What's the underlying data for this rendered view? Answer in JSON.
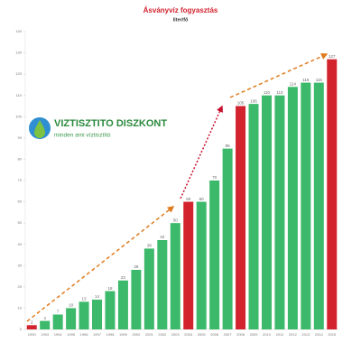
{
  "chart_data": {
    "type": "bar",
    "title": "Ásványvíz fogyasztás",
    "subtitle": "liter/fő",
    "categories": [
      "1990",
      "1993",
      "1994",
      "1995",
      "1996",
      "1997",
      "1998",
      "1999",
      "2000",
      "2001",
      "2002",
      "2003",
      "2004",
      "2005",
      "2006",
      "2007",
      "2008",
      "2009",
      "2010",
      "2011",
      "2012",
      "2013",
      "2014",
      "2015"
    ],
    "values": [
      2,
      4,
      7,
      10,
      13,
      14,
      18,
      23,
      28,
      38,
      42,
      50,
      60,
      60,
      70,
      85,
      105,
      106,
      110,
      110,
      114,
      116,
      116,
      127
    ],
    "colors": [
      "#d2232f",
      "#3cb96a",
      "#3cb96a",
      "#3cb96a",
      "#3cb96a",
      "#3cb96a",
      "#3cb96a",
      "#3cb96a",
      "#3cb96a",
      "#3cb96a",
      "#3cb96a",
      "#3cb96a",
      "#d2232f",
      "#3cb96a",
      "#3cb96a",
      "#3cb96a",
      "#d2232f",
      "#3cb96a",
      "#3cb96a",
      "#3cb96a",
      "#3cb96a",
      "#3cb96a",
      "#3cb96a",
      "#d2232f"
    ],
    "ylim": [
      0,
      140
    ],
    "yticks": [
      0,
      10,
      20,
      30,
      40,
      50,
      60,
      70,
      80,
      90,
      100,
      110,
      120,
      130,
      140
    ],
    "grid": false
  },
  "logo": {
    "name": "VIZTISZTITO DISZKONT",
    "tagline": "minden ami víztisztító"
  }
}
